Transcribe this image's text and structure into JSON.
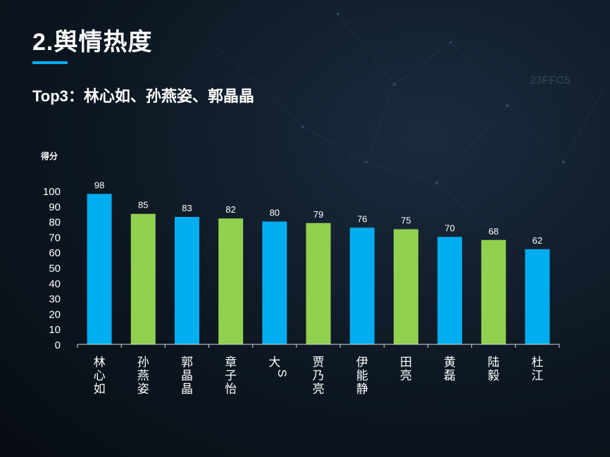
{
  "page": {
    "title": "2.舆情热度",
    "subtitle": "Top3：林心如、孙燕姿、郭晶晶",
    "bg_code": "23FFC5"
  },
  "chart_data": {
    "type": "bar",
    "ylabel": "得分",
    "ylim": [
      0,
      100
    ],
    "yticks": [
      0,
      10,
      20,
      30,
      40,
      50,
      60,
      70,
      80,
      90,
      100
    ],
    "categories": [
      "林心如",
      "孙燕姿",
      "郭晶晶",
      "章子怡",
      "大S",
      "贾乃亮",
      "伊能静",
      "田亮",
      "黄磊",
      "陆毅",
      "杜江"
    ],
    "values": [
      98,
      85,
      83,
      82,
      80,
      79,
      76,
      75,
      70,
      68,
      62
    ],
    "bar_colors": [
      "#00aef0",
      "#92d050",
      "#00aef0",
      "#92d050",
      "#00aef0",
      "#92d050",
      "#00aef0",
      "#92d050",
      "#00aef0",
      "#92d050",
      "#00aef0"
    ],
    "data_labels": true,
    "grid": false
  }
}
